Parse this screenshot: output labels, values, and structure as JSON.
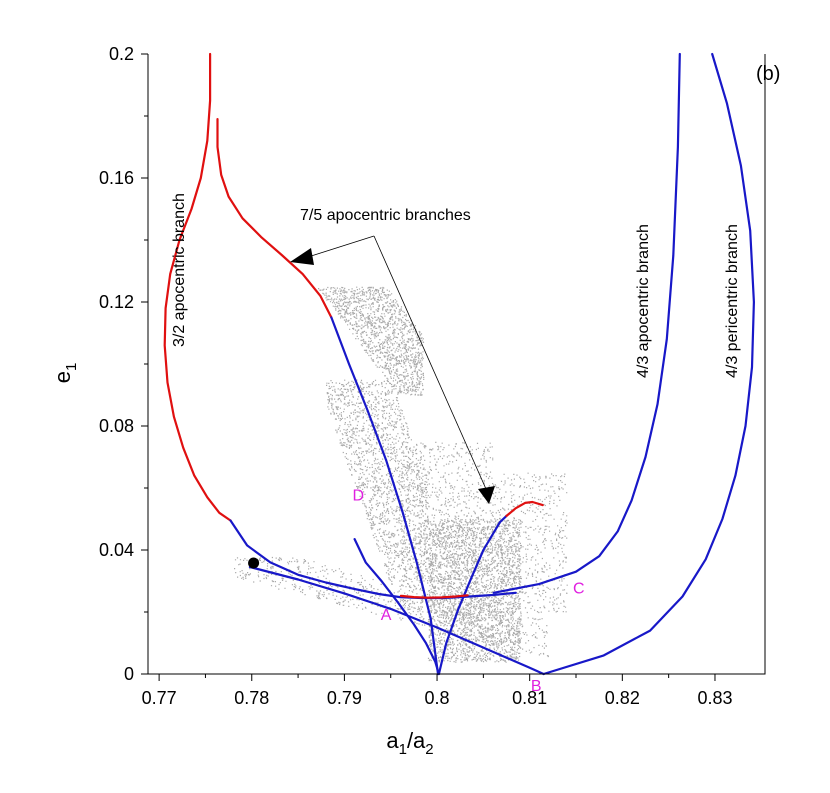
{
  "chart_data": {
    "type": "line",
    "panel_label": "(b)",
    "xlabel": "a1/a2",
    "xlabel_main": "a",
    "xlabel_sub1": "1",
    "xlabel_mid": "/a",
    "xlabel_sub2": "2",
    "ylabel": "e1",
    "ylabel_main": "e",
    "ylabel_sub": "1",
    "xlim": [
      0.7688,
      0.8354
    ],
    "ylim": [
      0,
      0.2
    ],
    "xticks": [
      0.77,
      0.78,
      0.79,
      0.8,
      0.81,
      0.82,
      0.83
    ],
    "xtick_labels": [
      "0.77",
      "0.78",
      "0.79",
      "0.8",
      "0.81",
      "0.82",
      "0.83"
    ],
    "yticks": [
      0,
      0.04,
      0.08,
      0.12,
      0.16,
      0.2
    ],
    "ytick_labels": [
      "0",
      "0.04",
      "0.08",
      "0.12",
      "0.16",
      "0.2"
    ],
    "annotations": {
      "branch_32": "3/2 apocentric branch",
      "branch_43_apo": "4/3 apocentric branch",
      "branch_43_peri": "4/3 pericentric branch",
      "branch_75": "7/5 apocentric branches"
    },
    "point_labels": [
      {
        "label": "A",
        "x": 0.7945,
        "y": 0.0175
      },
      {
        "label": "B",
        "x": 0.8107,
        "y": -0.0055
      },
      {
        "label": "C",
        "x": 0.8153,
        "y": 0.026
      },
      {
        "label": "D",
        "x": 0.7915,
        "y": 0.056
      }
    ],
    "marker": {
      "x": 0.7802,
      "y": 0.0358
    },
    "colors": {
      "red": "#e01010",
      "blue": "#1818c8",
      "gray": "#aaaaaa",
      "magenta": "#e020e0",
      "black": "#000000"
    },
    "series": [
      {
        "color": "red",
        "x": [
          0.7755,
          0.7755,
          0.7752,
          0.7745,
          0.7735,
          0.7722,
          0.7712,
          0.7707,
          0.7706,
          0.7709,
          0.7716,
          0.7726,
          0.7738,
          0.7752,
          0.7765,
          0.7777
        ],
        "y": [
          0.2,
          0.185,
          0.172,
          0.16,
          0.15,
          0.14,
          0.129,
          0.118,
          0.106,
          0.094,
          0.083,
          0.073,
          0.064,
          0.057,
          0.052,
          0.0495
        ]
      },
      {
        "color": "blue",
        "x": [
          0.7777,
          0.7795,
          0.782,
          0.785,
          0.788,
          0.791,
          0.7937,
          0.796,
          0.7983,
          0.8007,
          0.8035,
          0.806,
          0.8085
        ],
        "y": [
          0.0495,
          0.0415,
          0.036,
          0.032,
          0.0295,
          0.0275,
          0.0258,
          0.0248,
          0.0245,
          0.0245,
          0.025,
          0.0255,
          0.0262
        ]
      },
      {
        "color": "red",
        "x": [
          0.7763,
          0.7763,
          0.7767,
          0.7775,
          0.779,
          0.781,
          0.7833,
          0.7855,
          0.7874,
          0.7886
        ],
        "y": [
          0.179,
          0.17,
          0.161,
          0.154,
          0.147,
          0.141,
          0.135,
          0.129,
          0.122,
          0.115
        ]
      },
      {
        "color": "blue",
        "x": [
          0.7886,
          0.7905,
          0.7925,
          0.7945,
          0.7963,
          0.7978,
          0.7993,
          0.8001
        ],
        "y": [
          0.115,
          0.1,
          0.085,
          0.069,
          0.052,
          0.036,
          0.018,
          0.0
        ]
      },
      {
        "color": "blue",
        "x": [
          0.7911,
          0.7923,
          0.794,
          0.7958,
          0.7975,
          0.7988,
          0.7998,
          0.8002
        ],
        "y": [
          0.0435,
          0.036,
          0.03,
          0.023,
          0.016,
          0.01,
          0.004,
          0.0
        ]
      },
      {
        "color": "blue",
        "x": [
          0.8002,
          0.801,
          0.8023,
          0.8037,
          0.805,
          0.806,
          0.8068,
          0.8075
        ],
        "y": [
          0.0,
          0.01,
          0.021,
          0.031,
          0.04,
          0.045,
          0.049,
          0.051
        ]
      },
      {
        "color": "red",
        "x": [
          0.7961,
          0.7975,
          0.799,
          0.8005,
          0.802,
          0.8033
        ],
        "y": [
          0.0252,
          0.0248,
          0.0246,
          0.0247,
          0.025,
          0.0254
        ]
      },
      {
        "color": "red",
        "x": [
          0.8075,
          0.8085,
          0.8095,
          0.8103,
          0.8114
        ],
        "y": [
          0.051,
          0.0535,
          0.0552,
          0.0555,
          0.0545
        ]
      },
      {
        "color": "blue",
        "x": [
          0.7798,
          0.785,
          0.79,
          0.795,
          0.8,
          0.805,
          0.81,
          0.8115
        ],
        "y": [
          0.0345,
          0.0305,
          0.026,
          0.021,
          0.015,
          0.0085,
          0.002,
          0.0
        ]
      },
      {
        "color": "blue",
        "x": [
          0.8061,
          0.811,
          0.815,
          0.8175,
          0.8195,
          0.821,
          0.8225,
          0.8238,
          0.8248,
          0.8255,
          0.826,
          0.8262
        ],
        "y": [
          0.0262,
          0.029,
          0.033,
          0.038,
          0.046,
          0.056,
          0.07,
          0.087,
          0.108,
          0.135,
          0.17,
          0.2
        ]
      },
      {
        "color": "blue",
        "x": [
          0.8115,
          0.818,
          0.823,
          0.8265,
          0.829,
          0.8308,
          0.8322,
          0.8333,
          0.834,
          0.8342,
          0.8338,
          0.8328,
          0.8313,
          0.8297
        ],
        "y": [
          0.0,
          0.006,
          0.014,
          0.025,
          0.037,
          0.05,
          0.064,
          0.08,
          0.099,
          0.12,
          0.143,
          0.164,
          0.184,
          0.2
        ]
      }
    ]
  }
}
